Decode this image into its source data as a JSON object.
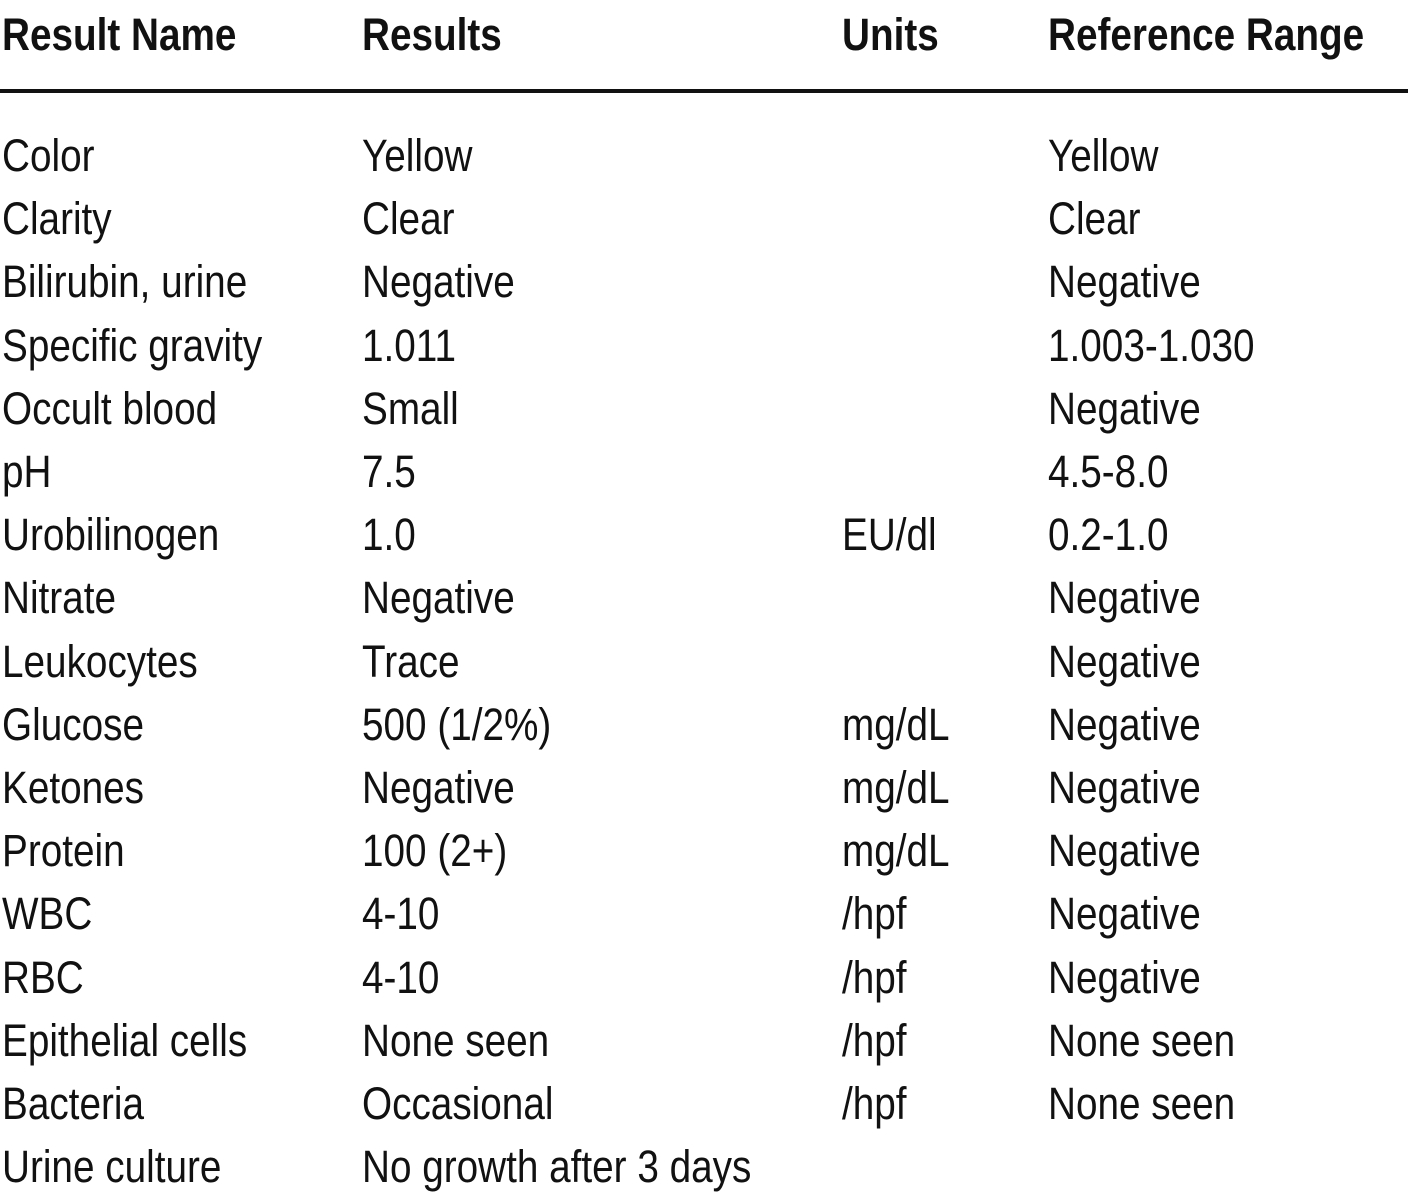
{
  "table": {
    "header": [
      "Result Name",
      "Results",
      "Units",
      "Reference Range"
    ],
    "rows": [
      {
        "name": "Color",
        "result": "Yellow",
        "reference": "Yellow"
      },
      {
        "name": "Clarity",
        "result": "Clear",
        "reference": "Clear"
      },
      {
        "name": "Bilirubin, urine",
        "result": "Negative",
        "reference": "Negative"
      },
      {
        "name": "Specific gravity",
        "result": "1.011",
        "reference": "1.003-1.030"
      },
      {
        "name": "Occult blood",
        "result": "Small",
        "reference": "Negative"
      },
      {
        "name": "pH",
        "result": "7.5",
        "reference": "4.5-8.0"
      },
      {
        "name": "Urobilinogen",
        "result": "1.0",
        "units": "EU/dl",
        "reference": "0.2-1.0"
      },
      {
        "name": "Nitrate",
        "result": "Negative",
        "reference": "Negative"
      },
      {
        "name": "Leukocytes",
        "result": "Trace",
        "reference": "Negative"
      },
      {
        "name": "Glucose",
        "result": "500 (1/2%)",
        "units": "mg/dL",
        "reference": "Negative"
      },
      {
        "name": "Ketones",
        "result": "Negative",
        "units": "mg/dL",
        "reference": "Negative"
      },
      {
        "name": "Protein",
        "result": "100 (2+)",
        "units": "mg/dL",
        "reference": "Negative"
      },
      {
        "name": "WBC",
        "result": "4-10",
        "units": "/hpf",
        "reference": "Negative"
      },
      {
        "name": "RBC",
        "result": "4-10",
        "units": "/hpf",
        "reference": "Negative"
      },
      {
        "name": "Epithelial cells",
        "result": "None seen",
        "units": "/hpf",
        "reference": "None seen"
      },
      {
        "name": "Bacteria",
        "result": "Occasional",
        "units": "/hpf",
        "reference": "None seen"
      },
      {
        "name": "Urine culture",
        "result": "No growth after 3 days"
      }
    ]
  }
}
